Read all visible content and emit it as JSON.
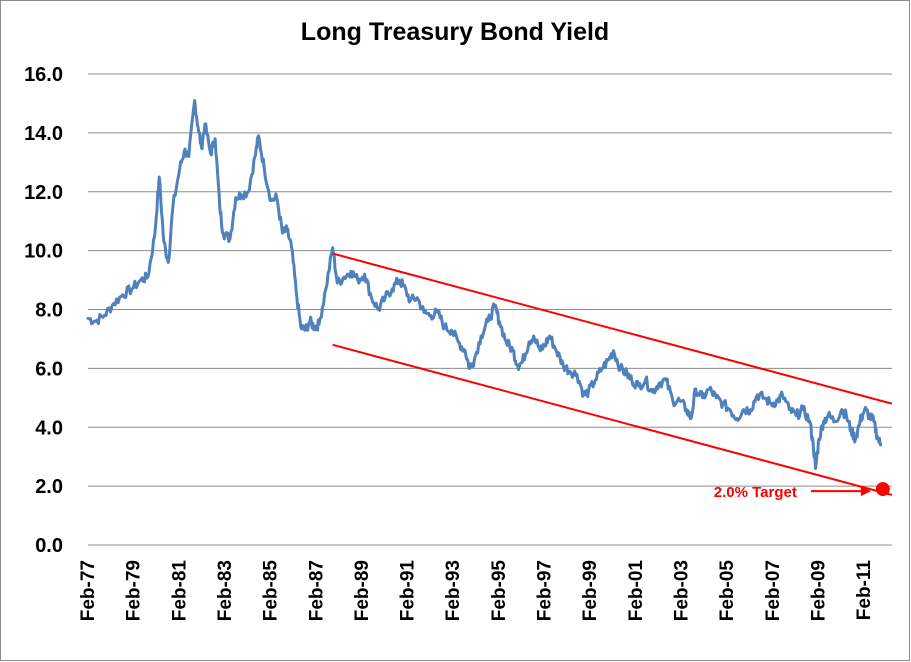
{
  "chart_data": {
    "type": "line",
    "title": "Long Treasury Bond Yield",
    "xlabel": "",
    "ylabel": "",
    "ylim": [
      0,
      16
    ],
    "xlim": [
      1977.08,
      2012.3
    ],
    "y_ticks": [
      "0.0",
      "2.0",
      "4.0",
      "6.0",
      "8.0",
      "10.0",
      "12.0",
      "14.0",
      "16.0"
    ],
    "x_ticks": [
      {
        "label": "Feb-77",
        "x": 1977.08
      },
      {
        "label": "Feb-79",
        "x": 1979.08
      },
      {
        "label": "Feb-81",
        "x": 1981.08
      },
      {
        "label": "Feb-83",
        "x": 1983.08
      },
      {
        "label": "Feb-85",
        "x": 1985.08
      },
      {
        "label": "Feb-87",
        "x": 1987.08
      },
      {
        "label": "Feb-89",
        "x": 1989.08
      },
      {
        "label": "Feb-91",
        "x": 1991.08
      },
      {
        "label": "Feb-93",
        "x": 1993.08
      },
      {
        "label": "Feb-95",
        "x": 1995.08
      },
      {
        "label": "Feb-97",
        "x": 1997.08
      },
      {
        "label": "Feb-99",
        "x": 1999.08
      },
      {
        "label": "Feb-01",
        "x": 2001.08
      },
      {
        "label": "Feb-03",
        "x": 2003.08
      },
      {
        "label": "Feb-05",
        "x": 2005.08
      },
      {
        "label": "Feb-07",
        "x": 2007.08
      },
      {
        "label": "Feb-09",
        "x": 2009.08
      },
      {
        "label": "Feb-11",
        "x": 2011.08
      }
    ],
    "series": [
      {
        "name": "Long Treasury Bond Yield",
        "color": "#4f81bd",
        "points": [
          [
            1977.08,
            7.7
          ],
          [
            1977.4,
            7.6
          ],
          [
            1977.8,
            7.8
          ],
          [
            1978.2,
            8.2
          ],
          [
            1978.6,
            8.5
          ],
          [
            1979.0,
            8.7
          ],
          [
            1979.4,
            9.0
          ],
          [
            1979.7,
            9.1
          ],
          [
            1980.0,
            10.5
          ],
          [
            1980.2,
            12.5
          ],
          [
            1980.4,
            10.3
          ],
          [
            1980.6,
            9.6
          ],
          [
            1980.8,
            11.5
          ],
          [
            1981.1,
            12.8
          ],
          [
            1981.3,
            13.4
          ],
          [
            1981.5,
            13.2
          ],
          [
            1981.75,
            15.1
          ],
          [
            1981.9,
            14.2
          ],
          [
            1982.05,
            13.5
          ],
          [
            1982.2,
            14.3
          ],
          [
            1982.45,
            13.3
          ],
          [
            1982.65,
            13.8
          ],
          [
            1982.85,
            11.5
          ],
          [
            1983.0,
            10.6
          ],
          [
            1983.3,
            10.4
          ],
          [
            1983.55,
            11.8
          ],
          [
            1983.8,
            11.9
          ],
          [
            1984.1,
            12.0
          ],
          [
            1984.4,
            13.2
          ],
          [
            1984.55,
            13.9
          ],
          [
            1984.8,
            12.8
          ],
          [
            1985.1,
            11.7
          ],
          [
            1985.35,
            11.8
          ],
          [
            1985.6,
            10.6
          ],
          [
            1985.8,
            10.7
          ],
          [
            1986.0,
            10.1
          ],
          [
            1986.2,
            8.6
          ],
          [
            1986.4,
            7.4
          ],
          [
            1986.6,
            7.3
          ],
          [
            1986.8,
            7.6
          ],
          [
            1987.0,
            7.4
          ],
          [
            1987.2,
            7.5
          ],
          [
            1987.5,
            8.7
          ],
          [
            1987.8,
            10.1
          ],
          [
            1988.0,
            8.9
          ],
          [
            1988.3,
            9.1
          ],
          [
            1988.6,
            9.3
          ],
          [
            1988.9,
            9.0
          ],
          [
            1989.2,
            9.2
          ],
          [
            1989.5,
            8.4
          ],
          [
            1989.8,
            8.0
          ],
          [
            1990.1,
            8.4
          ],
          [
            1990.4,
            8.7
          ],
          [
            1990.7,
            9.0
          ],
          [
            1990.9,
            8.8
          ],
          [
            1991.2,
            8.3
          ],
          [
            1991.5,
            8.4
          ],
          [
            1991.8,
            7.9
          ],
          [
            1992.1,
            7.8
          ],
          [
            1992.4,
            7.9
          ],
          [
            1992.7,
            7.4
          ],
          [
            1993.0,
            7.3
          ],
          [
            1993.3,
            6.9
          ],
          [
            1993.6,
            6.6
          ],
          [
            1993.8,
            6.0
          ],
          [
            1994.0,
            6.3
          ],
          [
            1994.3,
            7.1
          ],
          [
            1994.6,
            7.6
          ],
          [
            1994.9,
            8.1
          ],
          [
            1995.1,
            7.6
          ],
          [
            1995.4,
            6.9
          ],
          [
            1995.7,
            6.6
          ],
          [
            1995.9,
            6.1
          ],
          [
            1996.1,
            6.2
          ],
          [
            1996.4,
            6.9
          ],
          [
            1996.6,
            7.1
          ],
          [
            1996.9,
            6.6
          ],
          [
            1997.1,
            6.8
          ],
          [
            1997.3,
            7.1
          ],
          [
            1997.6,
            6.6
          ],
          [
            1997.9,
            6.1
          ],
          [
            1998.2,
            5.9
          ],
          [
            1998.5,
            5.8
          ],
          [
            1998.8,
            5.1
          ],
          [
            1999.0,
            5.2
          ],
          [
            1999.3,
            5.6
          ],
          [
            1999.6,
            6.0
          ],
          [
            1999.9,
            6.3
          ],
          [
            2000.1,
            6.6
          ],
          [
            2000.4,
            6.0
          ],
          [
            2000.7,
            5.8
          ],
          [
            2000.9,
            5.6
          ],
          [
            2001.2,
            5.4
          ],
          [
            2001.5,
            5.6
          ],
          [
            2001.8,
            5.2
          ],
          [
            2002.1,
            5.5
          ],
          [
            2002.4,
            5.6
          ],
          [
            2002.7,
            4.9
          ],
          [
            2003.0,
            4.9
          ],
          [
            2003.3,
            4.6
          ],
          [
            2003.5,
            4.3
          ],
          [
            2003.7,
            5.3
          ],
          [
            2004.0,
            5.0
          ],
          [
            2004.3,
            5.3
          ],
          [
            2004.6,
            5.0
          ],
          [
            2004.9,
            4.8
          ],
          [
            2005.2,
            4.6
          ],
          [
            2005.5,
            4.3
          ],
          [
            2005.8,
            4.6
          ],
          [
            2006.1,
            4.6
          ],
          [
            2006.4,
            5.1
          ],
          [
            2006.7,
            5.0
          ],
          [
            2007.0,
            4.8
          ],
          [
            2007.3,
            4.9
          ],
          [
            2007.5,
            5.1
          ],
          [
            2007.8,
            4.6
          ],
          [
            2008.1,
            4.4
          ],
          [
            2008.4,
            4.6
          ],
          [
            2008.7,
            4.2
          ],
          [
            2008.85,
            3.4
          ],
          [
            2008.95,
            2.6
          ],
          [
            2009.1,
            3.6
          ],
          [
            2009.3,
            4.2
          ],
          [
            2009.5,
            4.4
          ],
          [
            2009.8,
            4.2
          ],
          [
            2010.1,
            4.6
          ],
          [
            2010.3,
            4.4
          ],
          [
            2010.5,
            3.9
          ],
          [
            2010.7,
            3.6
          ],
          [
            2010.9,
            4.2
          ],
          [
            2011.1,
            4.6
          ],
          [
            2011.3,
            4.4
          ],
          [
            2011.5,
            4.2
          ],
          [
            2011.65,
            3.7
          ],
          [
            2011.8,
            3.4
          ]
        ]
      }
    ],
    "channel_lines": [
      {
        "name": "upper-trend",
        "color": "#ff0000",
        "x1": 1987.8,
        "y1": 9.9,
        "x2": 2012.3,
        "y2": 4.8
      },
      {
        "name": "lower-trend",
        "color": "#ff0000",
        "x1": 1987.8,
        "y1": 6.8,
        "x2": 2012.3,
        "y2": 1.7
      }
    ],
    "target": {
      "label": "2.0% Target",
      "x": 2011.9,
      "y": 1.9,
      "color": "#ff0000"
    },
    "grid": true,
    "legend": "none"
  },
  "colors": {
    "line": "#4f81bd",
    "trend": "#ff0000",
    "grid": "#8c8c8c",
    "text": "#000000"
  }
}
